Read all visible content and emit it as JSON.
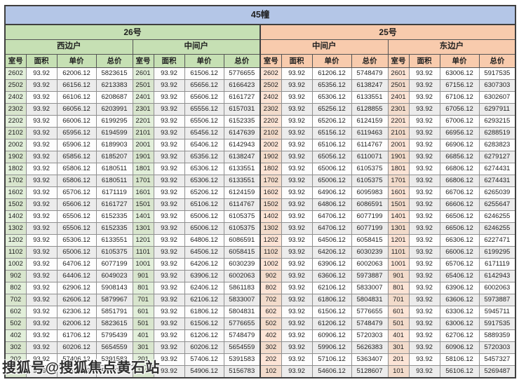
{
  "watermark": "搜狐号@搜狐焦点黄石站",
  "colors": {
    "banner_bg": "#b4c6e7",
    "building26_bg": "#c6e0b4",
    "building25_bg": "#f8cbad",
    "room_green_tint": "#e2efda",
    "room_orange_tint": "#fce4d6",
    "stripe_gray": "#ececec"
  },
  "chart_data": {
    "type": "table",
    "title": "45幢",
    "building_groups": [
      {
        "building": "26号",
        "units": [
          "西边户",
          "中间户"
        ]
      },
      {
        "building": "25号",
        "units": [
          "中间户",
          "东边户"
        ]
      }
    ],
    "column_headers": [
      "室号",
      "面积",
      "单价",
      "总价"
    ],
    "rows": [
      [
        "2602",
        "93.92",
        "62006.12",
        "5823615",
        "2601",
        "93.92",
        "61506.12",
        "5776655",
        "2602",
        "93.92",
        "61206.12",
        "5748479",
        "2601",
        "93.92",
        "63006.12",
        "5917535"
      ],
      [
        "2502",
        "93.92",
        "66156.12",
        "6213383",
        "2501",
        "93.92",
        "65656.12",
        "6166423",
        "2502",
        "93.92",
        "65356.12",
        "6138247",
        "2501",
        "93.92",
        "67156.12",
        "6307303"
      ],
      [
        "2402",
        "93.92",
        "66106.12",
        "6208687",
        "2401",
        "93.92",
        "65606.12",
        "6161727",
        "2402",
        "93.92",
        "65306.12",
        "6133551",
        "2401",
        "93.92",
        "67106.12",
        "6302607"
      ],
      [
        "2302",
        "93.92",
        "66056.12",
        "6203991",
        "2301",
        "93.92",
        "65556.12",
        "6157031",
        "2302",
        "93.92",
        "65256.12",
        "6128855",
        "2301",
        "93.92",
        "67056.12",
        "6297911"
      ],
      [
        "2202",
        "93.92",
        "66006.12",
        "6199295",
        "2201",
        "93.92",
        "65506.12",
        "6152335",
        "2202",
        "93.92",
        "65206.12",
        "6124159",
        "2201",
        "93.92",
        "67006.12",
        "6293215"
      ],
      [
        "2102",
        "93.92",
        "65956.12",
        "6194599",
        "2101",
        "93.92",
        "65456.12",
        "6147639",
        "2102",
        "93.92",
        "65156.12",
        "6119463",
        "2101",
        "93.92",
        "66956.12",
        "6288519"
      ],
      [
        "2002",
        "93.92",
        "65906.12",
        "6189903",
        "2001",
        "93.92",
        "65406.12",
        "6142943",
        "2002",
        "93.92",
        "65106.12",
        "6114767",
        "2001",
        "93.92",
        "66906.12",
        "6283823"
      ],
      [
        "1902",
        "93.92",
        "65856.12",
        "6185207",
        "1901",
        "93.92",
        "65356.12",
        "6138247",
        "1902",
        "93.92",
        "65056.12",
        "6110071",
        "1901",
        "93.92",
        "66856.12",
        "6279127"
      ],
      [
        "1802",
        "93.92",
        "65806.12",
        "6180511",
        "1801",
        "93.92",
        "65306.12",
        "6133551",
        "1802",
        "93.92",
        "65006.12",
        "6105375",
        "1801",
        "93.92",
        "66806.12",
        "6274431"
      ],
      [
        "1702",
        "93.92",
        "65806.12",
        "6180511",
        "1701",
        "93.92",
        "65306.12",
        "6133551",
        "1702",
        "93.92",
        "65006.12",
        "6105375",
        "1701",
        "93.92",
        "66806.12",
        "6274431"
      ],
      [
        "1602",
        "93.92",
        "65706.12",
        "6171119",
        "1601",
        "93.92",
        "65206.12",
        "6124159",
        "1602",
        "93.92",
        "64906.12",
        "6095983",
        "1601",
        "93.92",
        "66706.12",
        "6265039"
      ],
      [
        "1502",
        "93.92",
        "65606.12",
        "6161727",
        "1501",
        "93.92",
        "65106.12",
        "6114767",
        "1502",
        "93.92",
        "64806.12",
        "6086591",
        "1501",
        "93.92",
        "66606.12",
        "6255647"
      ],
      [
        "1402",
        "93.92",
        "65506.12",
        "6152335",
        "1401",
        "93.92",
        "65006.12",
        "6105375",
        "1402",
        "93.92",
        "64706.12",
        "6077199",
        "1401",
        "93.92",
        "66506.12",
        "6246255"
      ],
      [
        "1302",
        "93.92",
        "65506.12",
        "6152335",
        "1301",
        "93.92",
        "65006.12",
        "6105375",
        "1302",
        "93.92",
        "64706.12",
        "6077199",
        "1301",
        "93.92",
        "66506.12",
        "6246255"
      ],
      [
        "1202",
        "93.92",
        "65306.12",
        "6133551",
        "1201",
        "93.92",
        "64806.12",
        "6086591",
        "1202",
        "93.92",
        "64506.12",
        "6058415",
        "1201",
        "93.92",
        "66306.12",
        "6227471"
      ],
      [
        "1102",
        "93.92",
        "65006.12",
        "6105375",
        "1101",
        "93.92",
        "64506.12",
        "6058415",
        "1102",
        "93.92",
        "64206.12",
        "6030239",
        "1101",
        "93.92",
        "66006.12",
        "6199295"
      ],
      [
        "1002",
        "93.92",
        "64706.12",
        "6077199",
        "1001",
        "93.92",
        "64206.12",
        "6030239",
        "1002",
        "93.92",
        "63906.12",
        "6002063",
        "1001",
        "93.92",
        "65706.12",
        "6171119"
      ],
      [
        "902",
        "93.92",
        "64406.12",
        "6049023",
        "901",
        "93.92",
        "63906.12",
        "6002063",
        "902",
        "93.92",
        "63606.12",
        "5973887",
        "901",
        "93.92",
        "65406.12",
        "6142943"
      ],
      [
        "802",
        "93.92",
        "62906.12",
        "5908143",
        "801",
        "93.92",
        "62406.12",
        "5861183",
        "802",
        "93.92",
        "62106.12",
        "5833007",
        "801",
        "93.92",
        "63906.12",
        "6002063"
      ],
      [
        "702",
        "93.92",
        "62606.12",
        "5879967",
        "701",
        "93.92",
        "62106.12",
        "5833007",
        "702",
        "93.92",
        "61806.12",
        "5804831",
        "701",
        "93.92",
        "63606.12",
        "5973887"
      ],
      [
        "602",
        "93.92",
        "62306.12",
        "5851791",
        "601",
        "93.92",
        "61806.12",
        "5804831",
        "602",
        "93.92",
        "61506.12",
        "5776655",
        "601",
        "93.92",
        "63306.12",
        "5945711"
      ],
      [
        "502",
        "93.92",
        "62006.12",
        "5823615",
        "501",
        "93.92",
        "61506.12",
        "5776655",
        "502",
        "93.92",
        "61206.12",
        "5748479",
        "501",
        "93.92",
        "63006.12",
        "5917535"
      ],
      [
        "402",
        "93.92",
        "61706.12",
        "5795439",
        "401",
        "93.92",
        "61206.12",
        "5748479",
        "402",
        "93.92",
        "60906.12",
        "5720303",
        "401",
        "93.92",
        "62706.12",
        "5889359"
      ],
      [
        "302",
        "93.92",
        "60206.12",
        "5654559",
        "301",
        "93.92",
        "60206.12",
        "5654559",
        "302",
        "93.92",
        "59906.12",
        "5626383",
        "301",
        "93.92",
        "60906.12",
        "5720303"
      ],
      [
        "202",
        "93.92",
        "57406.12",
        "5391583",
        "201",
        "93.92",
        "57406.12",
        "5391583",
        "202",
        "93.92",
        "57106.12",
        "5363407",
        "201",
        "93.92",
        "58106.12",
        "5457327"
      ],
      [
        "102",
        "93.92",
        "55406.12",
        "5203743",
        "101",
        "93.92",
        "54906.12",
        "5156783",
        "102",
        "93.92",
        "54606.12",
        "5128607",
        "101",
        "93.92",
        "56106.12",
        "5269487"
      ]
    ]
  }
}
